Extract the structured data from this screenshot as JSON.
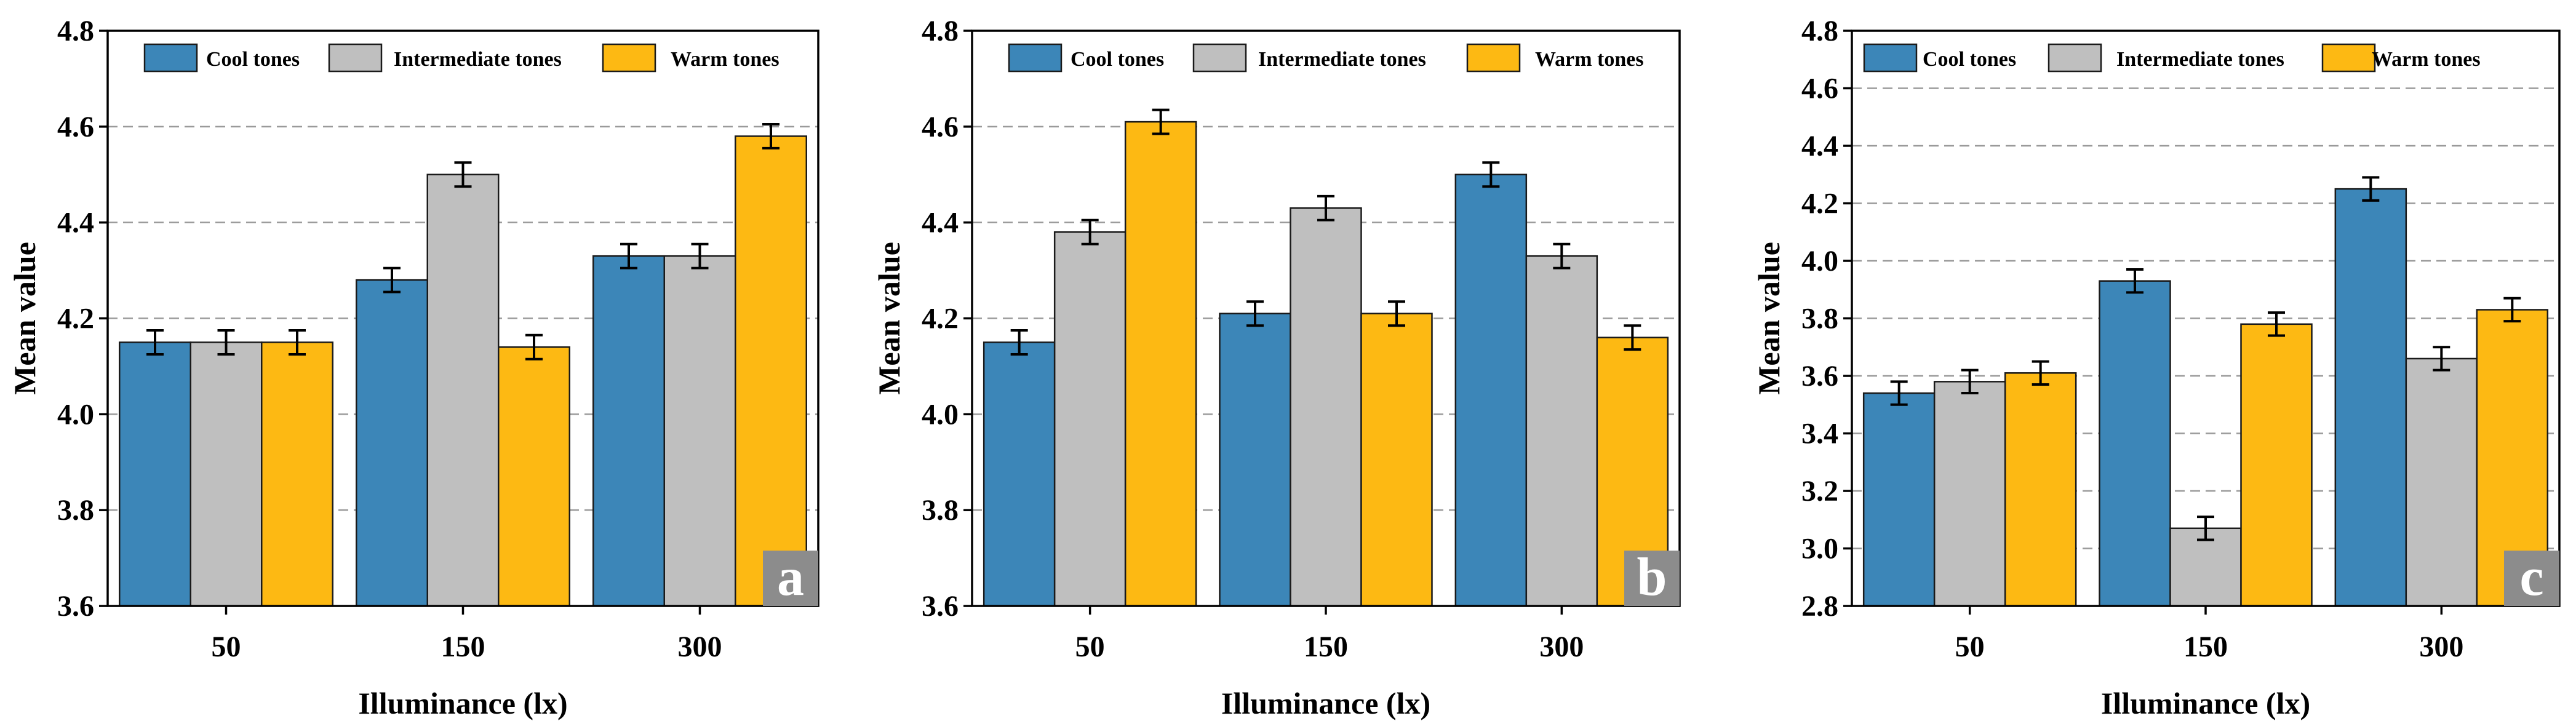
{
  "chart_data": [
    {
      "type": "bar",
      "panel_label": "a",
      "categories": [
        "50",
        "150",
        "300"
      ],
      "xlabel": "Illuminance (lx)",
      "ylabel": "Mean value",
      "ylim": [
        3.6,
        4.8
      ],
      "yticks": [
        "3.6",
        "3.8",
        "4.0",
        "4.2",
        "4.4",
        "4.6",
        "4.8"
      ],
      "grid": true,
      "legend_position": "top",
      "series": [
        {
          "name": "Cool tones",
          "color": "#3c86b8",
          "values": [
            4.15,
            4.28,
            4.33
          ],
          "errors": [
            0.025,
            0.025,
            0.025
          ]
        },
        {
          "name": "Intermediate tones",
          "color": "#bfbfbf",
          "values": [
            4.15,
            4.5,
            4.33
          ],
          "errors": [
            0.025,
            0.025,
            0.025
          ]
        },
        {
          "name": "Warm tones",
          "color": "#fdb913",
          "values": [
            4.15,
            4.14,
            4.58
          ],
          "errors": [
            0.025,
            0.025,
            0.025
          ]
        }
      ]
    },
    {
      "type": "bar",
      "panel_label": "b",
      "categories": [
        "50",
        "150",
        "300"
      ],
      "xlabel": "Illuminance (lx)",
      "ylabel": "Mean value",
      "ylim": [
        3.6,
        4.8
      ],
      "yticks": [
        "3.6",
        "3.8",
        "4.0",
        "4.2",
        "4.4",
        "4.6",
        "4.8"
      ],
      "grid": true,
      "legend_position": "top",
      "series": [
        {
          "name": "Cool tones",
          "color": "#3c86b8",
          "values": [
            4.15,
            4.21,
            4.5
          ],
          "errors": [
            0.025,
            0.025,
            0.025
          ]
        },
        {
          "name": "Intermediate tones",
          "color": "#bfbfbf",
          "values": [
            4.38,
            4.43,
            4.33
          ],
          "errors": [
            0.025,
            0.025,
            0.025
          ]
        },
        {
          "name": "Warm tones",
          "color": "#fdb913",
          "values": [
            4.61,
            4.21,
            4.16
          ],
          "errors": [
            0.025,
            0.025,
            0.025
          ]
        }
      ]
    },
    {
      "type": "bar",
      "panel_label": "c",
      "categories": [
        "50",
        "150",
        "300"
      ],
      "xlabel": "Illuminance (lx)",
      "ylabel": "Mean value",
      "ylim": [
        2.8,
        4.8
      ],
      "yticks": [
        "2.8",
        "3.0",
        "3.2",
        "3.4",
        "3.6",
        "3.8",
        "4.0",
        "4.2",
        "4.4",
        "4.6",
        "4.8"
      ],
      "grid": true,
      "legend_position": "top",
      "series": [
        {
          "name": "Cool tones",
          "color": "#3c86b8",
          "values": [
            3.54,
            3.93,
            4.25
          ],
          "errors": [
            0.04,
            0.04,
            0.04
          ]
        },
        {
          "name": "Intermediate tones",
          "color": "#bfbfbf",
          "values": [
            3.58,
            3.07,
            3.66
          ],
          "errors": [
            0.04,
            0.04,
            0.04
          ]
        },
        {
          "name": "Warm tones",
          "color": "#fdb913",
          "values": [
            3.61,
            3.78,
            3.83
          ],
          "errors": [
            0.04,
            0.04,
            0.04
          ]
        }
      ]
    }
  ]
}
